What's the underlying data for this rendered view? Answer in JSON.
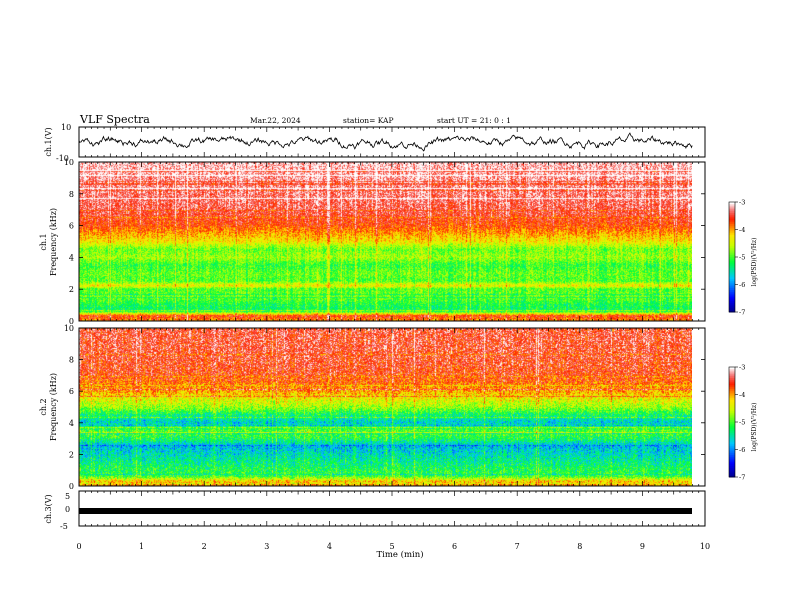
{
  "header": {
    "title": "VLF Spectra",
    "date": "Mar.22, 2024",
    "station": "station= KAP",
    "start": "start UT =  21: 0 : 1"
  },
  "chart_data": [
    {
      "type": "line",
      "name": "ch1-waveform",
      "ylabel": "ch.1(V)",
      "ylim": [
        -10,
        10
      ],
      "yticks": [
        "10",
        "-10"
      ],
      "xlim": [
        0,
        10
      ],
      "description_mean": 0,
      "amplitude": 5
    },
    {
      "type": "heatmap",
      "name": "ch1-spectrogram",
      "ylabel_top": "ch.1",
      "ylabel": "Frequency (kHz)",
      "ylim": [
        0,
        10
      ],
      "yticks": [
        "0",
        "2",
        "4",
        "6",
        "8",
        "10"
      ],
      "xlim": [
        0,
        10
      ],
      "data_end_min": 9.8,
      "colorbar": {
        "label": "log(PSD)(V²/Hz)",
        "range": [
          -7,
          -3
        ],
        "ticks": [
          "-3",
          "-4",
          "-5",
          "-6",
          "-7"
        ]
      },
      "profile_khz": [
        [
          0,
          -3.9
        ],
        [
          0.3,
          -3.6
        ],
        [
          0.6,
          -5.3
        ],
        [
          1,
          -5.2
        ],
        [
          1.5,
          -4.9
        ],
        [
          2,
          -5.0
        ],
        [
          2.2,
          -4.3
        ],
        [
          2.5,
          -5.0
        ],
        [
          3,
          -4.9
        ],
        [
          3.5,
          -5.1
        ],
        [
          4,
          -4.7
        ],
        [
          4.5,
          -4.9
        ],
        [
          5,
          -4.3
        ],
        [
          5.5,
          -4.0
        ],
        [
          6,
          -3.7
        ],
        [
          7,
          -3.4
        ],
        [
          8,
          -3.3
        ],
        [
          9,
          -3.2
        ],
        [
          10,
          -3.1
        ]
      ]
    },
    {
      "type": "heatmap",
      "name": "ch2-spectrogram",
      "ylabel_top": "ch.2",
      "ylabel": "Frequency (kHz)",
      "ylim": [
        0,
        10
      ],
      "yticks": [
        "0",
        "2",
        "4",
        "6",
        "8",
        "10"
      ],
      "xlim": [
        0,
        10
      ],
      "data_end_min": 9.8,
      "colorbar": {
        "label": "log(PSD)(V²/Hz)",
        "range": [
          -7,
          -3
        ],
        "ticks": [
          "-3",
          "-4",
          "-5",
          "-6",
          "-7"
        ]
      },
      "profile_khz": [
        [
          0,
          -4.0
        ],
        [
          0.3,
          -4.2
        ],
        [
          0.6,
          -5.1
        ],
        [
          1,
          -5.2
        ],
        [
          1.5,
          -5.4
        ],
        [
          2,
          -5.6
        ],
        [
          2.5,
          -5.8
        ],
        [
          3,
          -5.2
        ],
        [
          3.5,
          -5.0
        ],
        [
          4,
          -5.7
        ],
        [
          4.5,
          -5.3
        ],
        [
          5,
          -4.7
        ],
        [
          5.5,
          -4.4
        ],
        [
          6,
          -4.0
        ],
        [
          7,
          -3.6
        ],
        [
          8,
          -3.5
        ],
        [
          9,
          -3.45
        ],
        [
          10,
          -3.45
        ]
      ]
    },
    {
      "type": "line",
      "name": "ch3-waveform",
      "ylabel": "ch.3(V)",
      "ylim": [
        -5,
        5
      ],
      "yticks": [
        "5",
        "0",
        "-5"
      ],
      "xlim": [
        0,
        10
      ],
      "description_mean": -2,
      "amplitude": 0.5
    }
  ],
  "xaxis": {
    "label": "Time (min)",
    "ticks": [
      "0",
      "1",
      "2",
      "3",
      "4",
      "5",
      "6",
      "7",
      "8",
      "9",
      "10"
    ]
  }
}
